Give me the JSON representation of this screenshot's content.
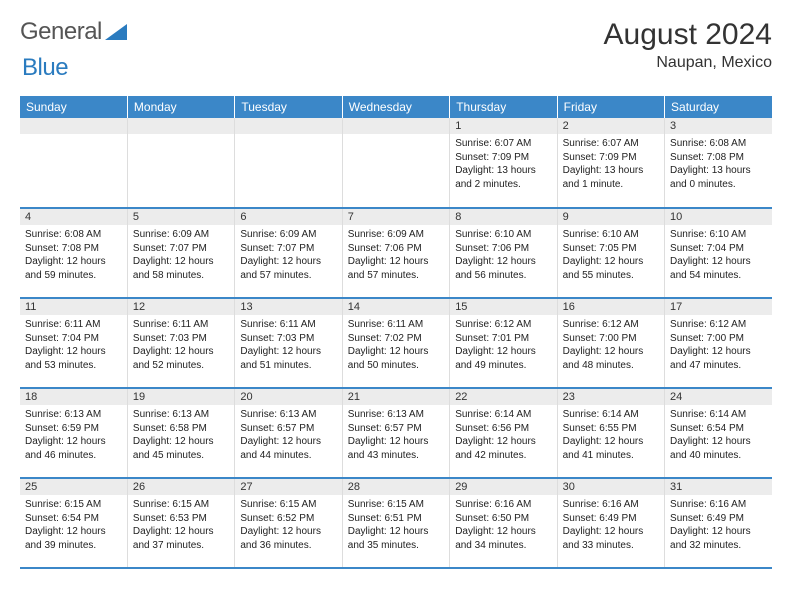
{
  "brand": {
    "part1": "General",
    "part2": "Blue"
  },
  "title": "August 2024",
  "location": "Naupan, Mexico",
  "colors": {
    "header_bg": "#3b87c8",
    "header_text": "#ffffff",
    "daynum_bg": "#ececec",
    "border": "#dddddd",
    "row_divider": "#3b87c8",
    "page_bg": "#ffffff",
    "logo_gray": "#555555",
    "logo_blue": "#2a7bbf"
  },
  "weekdays": [
    "Sunday",
    "Monday",
    "Tuesday",
    "Wednesday",
    "Thursday",
    "Friday",
    "Saturday"
  ],
  "weeks": [
    [
      {
        "day": "",
        "sunrise": "",
        "sunset": "",
        "daylight": ""
      },
      {
        "day": "",
        "sunrise": "",
        "sunset": "",
        "daylight": ""
      },
      {
        "day": "",
        "sunrise": "",
        "sunset": "",
        "daylight": ""
      },
      {
        "day": "",
        "sunrise": "",
        "sunset": "",
        "daylight": ""
      },
      {
        "day": "1",
        "sunrise": "Sunrise: 6:07 AM",
        "sunset": "Sunset: 7:09 PM",
        "daylight": "Daylight: 13 hours and 2 minutes."
      },
      {
        "day": "2",
        "sunrise": "Sunrise: 6:07 AM",
        "sunset": "Sunset: 7:09 PM",
        "daylight": "Daylight: 13 hours and 1 minute."
      },
      {
        "day": "3",
        "sunrise": "Sunrise: 6:08 AM",
        "sunset": "Sunset: 7:08 PM",
        "daylight": "Daylight: 13 hours and 0 minutes."
      }
    ],
    [
      {
        "day": "4",
        "sunrise": "Sunrise: 6:08 AM",
        "sunset": "Sunset: 7:08 PM",
        "daylight": "Daylight: 12 hours and 59 minutes."
      },
      {
        "day": "5",
        "sunrise": "Sunrise: 6:09 AM",
        "sunset": "Sunset: 7:07 PM",
        "daylight": "Daylight: 12 hours and 58 minutes."
      },
      {
        "day": "6",
        "sunrise": "Sunrise: 6:09 AM",
        "sunset": "Sunset: 7:07 PM",
        "daylight": "Daylight: 12 hours and 57 minutes."
      },
      {
        "day": "7",
        "sunrise": "Sunrise: 6:09 AM",
        "sunset": "Sunset: 7:06 PM",
        "daylight": "Daylight: 12 hours and 57 minutes."
      },
      {
        "day": "8",
        "sunrise": "Sunrise: 6:10 AM",
        "sunset": "Sunset: 7:06 PM",
        "daylight": "Daylight: 12 hours and 56 minutes."
      },
      {
        "day": "9",
        "sunrise": "Sunrise: 6:10 AM",
        "sunset": "Sunset: 7:05 PM",
        "daylight": "Daylight: 12 hours and 55 minutes."
      },
      {
        "day": "10",
        "sunrise": "Sunrise: 6:10 AM",
        "sunset": "Sunset: 7:04 PM",
        "daylight": "Daylight: 12 hours and 54 minutes."
      }
    ],
    [
      {
        "day": "11",
        "sunrise": "Sunrise: 6:11 AM",
        "sunset": "Sunset: 7:04 PM",
        "daylight": "Daylight: 12 hours and 53 minutes."
      },
      {
        "day": "12",
        "sunrise": "Sunrise: 6:11 AM",
        "sunset": "Sunset: 7:03 PM",
        "daylight": "Daylight: 12 hours and 52 minutes."
      },
      {
        "day": "13",
        "sunrise": "Sunrise: 6:11 AM",
        "sunset": "Sunset: 7:03 PM",
        "daylight": "Daylight: 12 hours and 51 minutes."
      },
      {
        "day": "14",
        "sunrise": "Sunrise: 6:11 AM",
        "sunset": "Sunset: 7:02 PM",
        "daylight": "Daylight: 12 hours and 50 minutes."
      },
      {
        "day": "15",
        "sunrise": "Sunrise: 6:12 AM",
        "sunset": "Sunset: 7:01 PM",
        "daylight": "Daylight: 12 hours and 49 minutes."
      },
      {
        "day": "16",
        "sunrise": "Sunrise: 6:12 AM",
        "sunset": "Sunset: 7:00 PM",
        "daylight": "Daylight: 12 hours and 48 minutes."
      },
      {
        "day": "17",
        "sunrise": "Sunrise: 6:12 AM",
        "sunset": "Sunset: 7:00 PM",
        "daylight": "Daylight: 12 hours and 47 minutes."
      }
    ],
    [
      {
        "day": "18",
        "sunrise": "Sunrise: 6:13 AM",
        "sunset": "Sunset: 6:59 PM",
        "daylight": "Daylight: 12 hours and 46 minutes."
      },
      {
        "day": "19",
        "sunrise": "Sunrise: 6:13 AM",
        "sunset": "Sunset: 6:58 PM",
        "daylight": "Daylight: 12 hours and 45 minutes."
      },
      {
        "day": "20",
        "sunrise": "Sunrise: 6:13 AM",
        "sunset": "Sunset: 6:57 PM",
        "daylight": "Daylight: 12 hours and 44 minutes."
      },
      {
        "day": "21",
        "sunrise": "Sunrise: 6:13 AM",
        "sunset": "Sunset: 6:57 PM",
        "daylight": "Daylight: 12 hours and 43 minutes."
      },
      {
        "day": "22",
        "sunrise": "Sunrise: 6:14 AM",
        "sunset": "Sunset: 6:56 PM",
        "daylight": "Daylight: 12 hours and 42 minutes."
      },
      {
        "day": "23",
        "sunrise": "Sunrise: 6:14 AM",
        "sunset": "Sunset: 6:55 PM",
        "daylight": "Daylight: 12 hours and 41 minutes."
      },
      {
        "day": "24",
        "sunrise": "Sunrise: 6:14 AM",
        "sunset": "Sunset: 6:54 PM",
        "daylight": "Daylight: 12 hours and 40 minutes."
      }
    ],
    [
      {
        "day": "25",
        "sunrise": "Sunrise: 6:15 AM",
        "sunset": "Sunset: 6:54 PM",
        "daylight": "Daylight: 12 hours and 39 minutes."
      },
      {
        "day": "26",
        "sunrise": "Sunrise: 6:15 AM",
        "sunset": "Sunset: 6:53 PM",
        "daylight": "Daylight: 12 hours and 37 minutes."
      },
      {
        "day": "27",
        "sunrise": "Sunrise: 6:15 AM",
        "sunset": "Sunset: 6:52 PM",
        "daylight": "Daylight: 12 hours and 36 minutes."
      },
      {
        "day": "28",
        "sunrise": "Sunrise: 6:15 AM",
        "sunset": "Sunset: 6:51 PM",
        "daylight": "Daylight: 12 hours and 35 minutes."
      },
      {
        "day": "29",
        "sunrise": "Sunrise: 6:16 AM",
        "sunset": "Sunset: 6:50 PM",
        "daylight": "Daylight: 12 hours and 34 minutes."
      },
      {
        "day": "30",
        "sunrise": "Sunrise: 6:16 AM",
        "sunset": "Sunset: 6:49 PM",
        "daylight": "Daylight: 12 hours and 33 minutes."
      },
      {
        "day": "31",
        "sunrise": "Sunrise: 6:16 AM",
        "sunset": "Sunset: 6:49 PM",
        "daylight": "Daylight: 12 hours and 32 minutes."
      }
    ]
  ]
}
